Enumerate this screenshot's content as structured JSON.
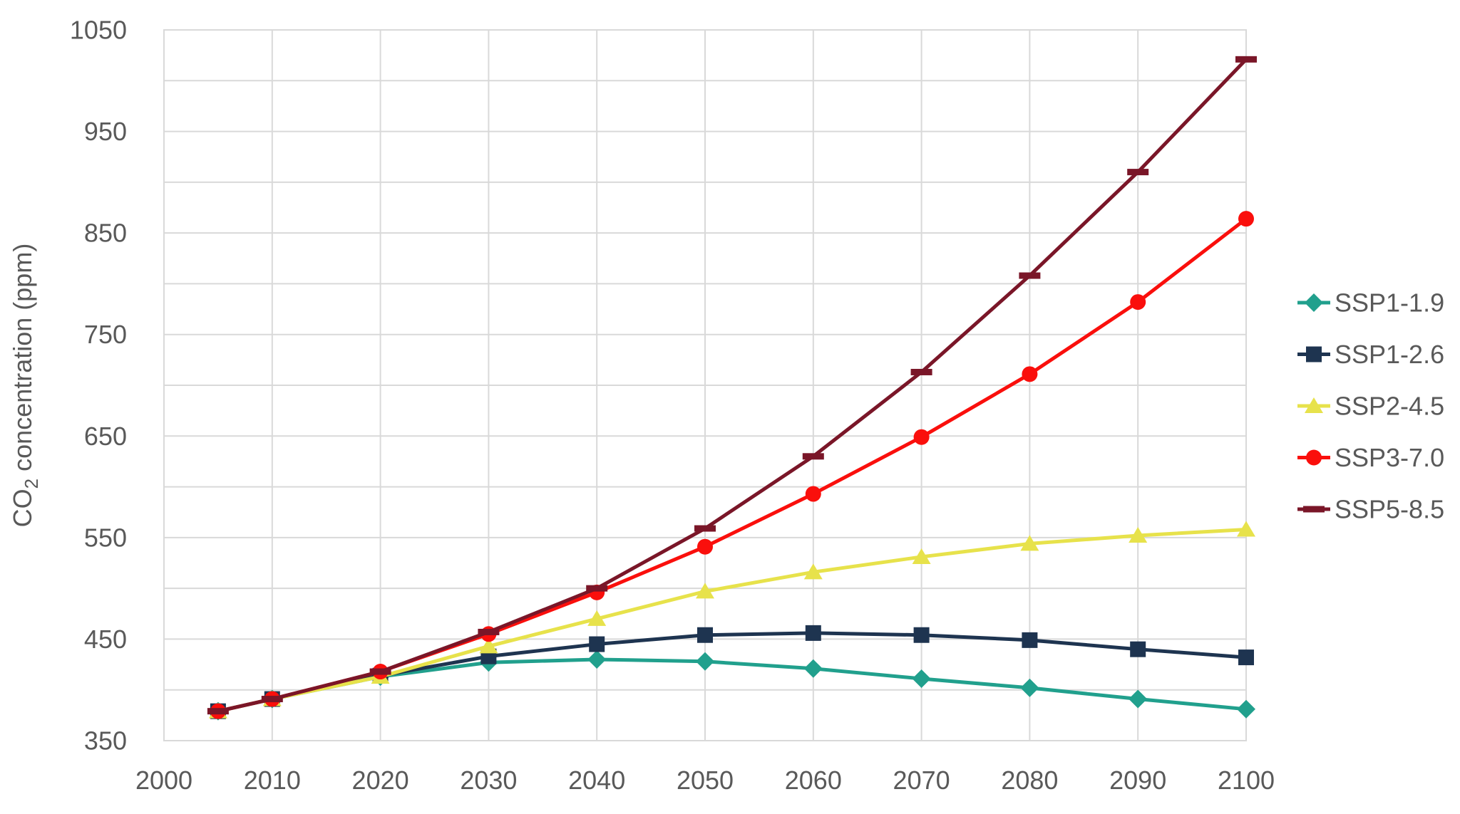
{
  "figure": {
    "y_axis_title": {
      "prefix": "CO",
      "subscript": "2",
      "suffix": " concentration (ppm)"
    }
  },
  "chart_data": {
    "type": "line",
    "title": "",
    "xlabel": "",
    "ylabel": "CO2 concentration (ppm)",
    "text_color": "#595959",
    "grid_color": "#d9d9d9",
    "background_color": "#ffffff",
    "x": [
      2005,
      2010,
      2020,
      2030,
      2040,
      2050,
      2060,
      2070,
      2080,
      2090,
      2100
    ],
    "series": [
      {
        "name": "SSP1-1.9",
        "color": "#21a08d",
        "marker": "diamond",
        "values": [
          379,
          391,
          413,
          427,
          430,
          428,
          421,
          411,
          402,
          391,
          381
        ]
      },
      {
        "name": "SSP1-2.6",
        "color": "#1e3450",
        "marker": "square",
        "values": [
          379,
          391,
          414,
          433,
          445,
          454,
          456,
          454,
          449,
          440,
          432
        ]
      },
      {
        "name": "SSP2-4.5",
        "color": "#e7e24b",
        "marker": "triangle",
        "values": [
          379,
          391,
          413,
          443,
          470,
          497,
          516,
          531,
          544,
          552,
          558
        ]
      },
      {
        "name": "SSP3-7.0",
        "color": "#fa0f0c",
        "marker": "circle",
        "values": [
          379,
          391,
          418,
          455,
          496,
          541,
          593,
          649,
          711,
          782,
          864
        ]
      },
      {
        "name": "SSP5-8.5",
        "color": "#7a1628",
        "marker": "dash",
        "values": [
          379,
          391,
          418,
          457,
          500,
          559,
          630,
          713,
          808,
          910,
          1021
        ]
      }
    ],
    "axes": {
      "x_range": [
        2000,
        2100
      ],
      "y_range": [
        350,
        1050
      ],
      "x_tick_step": 10,
      "y_gridline_step": 50,
      "x_ticks": [
        2000,
        2010,
        2020,
        2030,
        2040,
        2050,
        2060,
        2070,
        2080,
        2090,
        2100
      ],
      "y_ticks_labeled": [
        350,
        450,
        550,
        650,
        750,
        850,
        950,
        1050
      ],
      "grid": true,
      "legend_position": "right"
    }
  }
}
